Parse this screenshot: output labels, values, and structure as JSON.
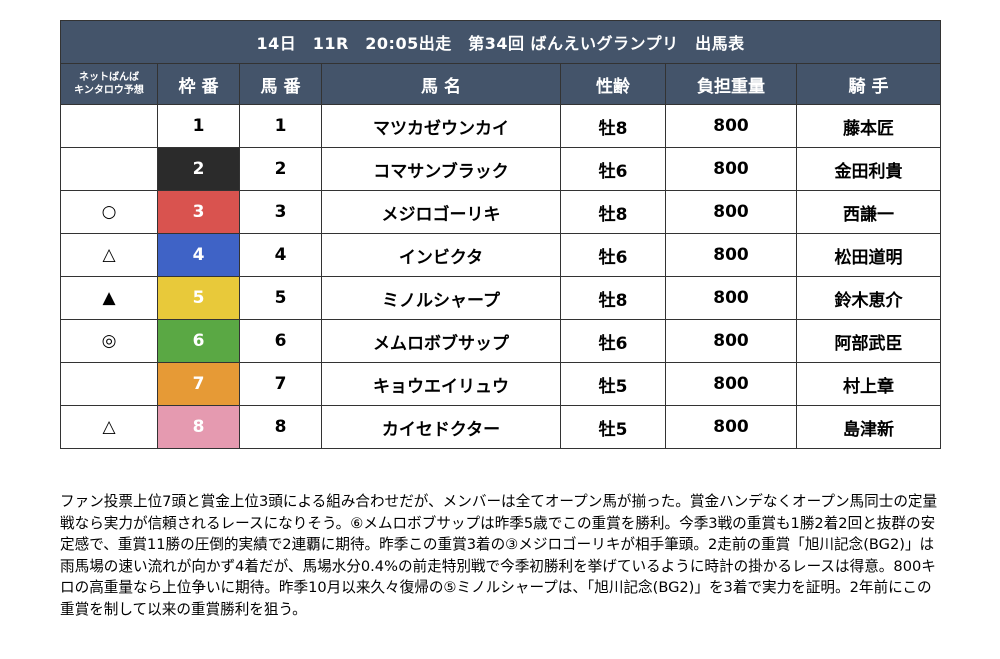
{
  "title": "14日　11R　20:05出走　第34回 ばんえいグランプリ　出馬表",
  "headers": {
    "prediction_line1": "ネットばんば",
    "prediction_line2": "キンタロウ予想",
    "waku": "枠 番",
    "uma": "馬 番",
    "name": "馬 名",
    "sexage": "性齢",
    "weight": "負担重量",
    "jockey": "騎 手"
  },
  "waku_colors": {
    "1": "#ffffff",
    "2": "#2b2b2b",
    "3": "#d9534f",
    "4": "#3f63c6",
    "5": "#e8c93a",
    "6": "#5aa844",
    "7": "#e69a36",
    "8": "#e59ab0"
  },
  "rows": [
    {
      "mark": "",
      "waku": "1",
      "uma": "1",
      "name": "マツカゼウンカイ",
      "sexage": "牡8",
      "weight": "800",
      "jockey": "藤本匠"
    },
    {
      "mark": "",
      "waku": "2",
      "uma": "2",
      "name": "コマサンブラック",
      "sexage": "牡6",
      "weight": "800",
      "jockey": "金田利貴"
    },
    {
      "mark": "○",
      "waku": "3",
      "uma": "3",
      "name": "メジロゴーリキ",
      "sexage": "牡8",
      "weight": "800",
      "jockey": "西謙一"
    },
    {
      "mark": "△",
      "waku": "4",
      "uma": "4",
      "name": "インビクタ",
      "sexage": "牡6",
      "weight": "800",
      "jockey": "松田道明"
    },
    {
      "mark": "▲",
      "waku": "5",
      "uma": "5",
      "name": "ミノルシャープ",
      "sexage": "牡8",
      "weight": "800",
      "jockey": "鈴木恵介"
    },
    {
      "mark": "◎",
      "waku": "6",
      "uma": "6",
      "name": "メムロボブサップ",
      "sexage": "牡6",
      "weight": "800",
      "jockey": "阿部武臣"
    },
    {
      "mark": "",
      "waku": "7",
      "uma": "7",
      "name": "キョウエイリュウ",
      "sexage": "牡5",
      "weight": "800",
      "jockey": "村上章"
    },
    {
      "mark": "△",
      "waku": "8",
      "uma": "8",
      "name": "カイセドクター",
      "sexage": "牡5",
      "weight": "800",
      "jockey": "島津新"
    }
  ],
  "commentary": "ファン投票上位7頭と賞金上位3頭による組み合わせだが、メンバーは全てオープン馬が揃った。賞金ハンデなくオープン馬同士の定量戦なら実力が信頼されるレースになりそう。⑥メムロボブサップは昨季5歳でこの重賞を勝利。今季3戦の重賞も1勝2着2回と抜群の安定感で、重賞11勝の圧倒的実績で2連覇に期待。昨季この重賞3着の③メジロゴーリキが相手筆頭。2走前の重賞「旭川記念(BG2)」は雨馬場の速い流れが向かず4着だが、馬場水分0.4%の前走特別戦で今季初勝利を挙げているように時計の掛かるレースは得意。800キロの高重量なら上位争いに期待。昨季10月以来久々復帰の⑤ミノルシャープは、「旭川記念(BG2)」を3着で実力を証明。2年前にこの重賞を制して以来の重賞勝利を狙う。"
}
